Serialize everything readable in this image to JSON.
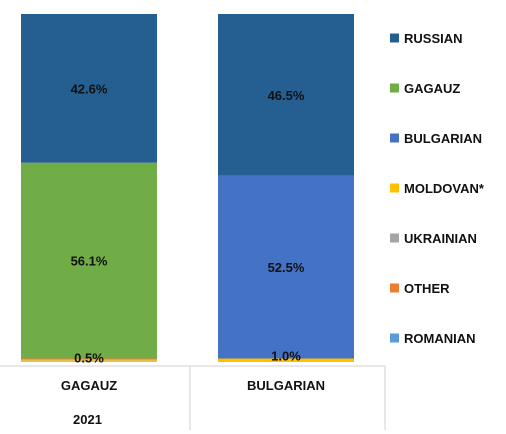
{
  "chart_data": {
    "type": "bar",
    "stacked": true,
    "normalized_percent": true,
    "categories": [
      "GAGAUZ",
      "BULGARIAN"
    ],
    "group_label": "2021",
    "series": [
      {
        "name": "RUSSIAN",
        "color": "#255E91",
        "values": [
          42.6,
          46.5
        ]
      },
      {
        "name": "GAGAUZ",
        "color": "#70AD47",
        "values": [
          56.1,
          0
        ]
      },
      {
        "name": "BULGARIAN",
        "color": "#4472C4",
        "values": [
          0,
          52.5
        ]
      },
      {
        "name": "MOLDOVAN*",
        "color": "#FFC000",
        "values": [
          0.5,
          1.0
        ]
      },
      {
        "name": "UKRAINIAN",
        "color": "#A5A5A5",
        "values": [
          0.3,
          0
        ]
      },
      {
        "name": "OTHER",
        "color": "#ED7D31",
        "values": [
          0.2,
          0
        ]
      },
      {
        "name": "ROMANIAN",
        "color": "#5B9BD5",
        "values": [
          0,
          0
        ]
      }
    ],
    "data_labels": [
      {
        "category": "GAGAUZ",
        "series": "RUSSIAN",
        "text": "42.6%"
      },
      {
        "category": "GAGAUZ",
        "series": "GAGAUZ",
        "text": "56.1%"
      },
      {
        "category": "GAGAUZ",
        "series": "MOLDOVAN*",
        "text": "0.5%"
      },
      {
        "category": "BULGARIAN",
        "series": "RUSSIAN",
        "text": "46.5%"
      },
      {
        "category": "BULGARIAN",
        "series": "BULGARIAN",
        "text": "52.5%"
      },
      {
        "category": "BULGARIAN",
        "series": "MOLDOVAN*",
        "text": "1.0%"
      }
    ],
    "ylim": [
      0,
      100
    ],
    "legend_position": "right",
    "grid": false
  }
}
